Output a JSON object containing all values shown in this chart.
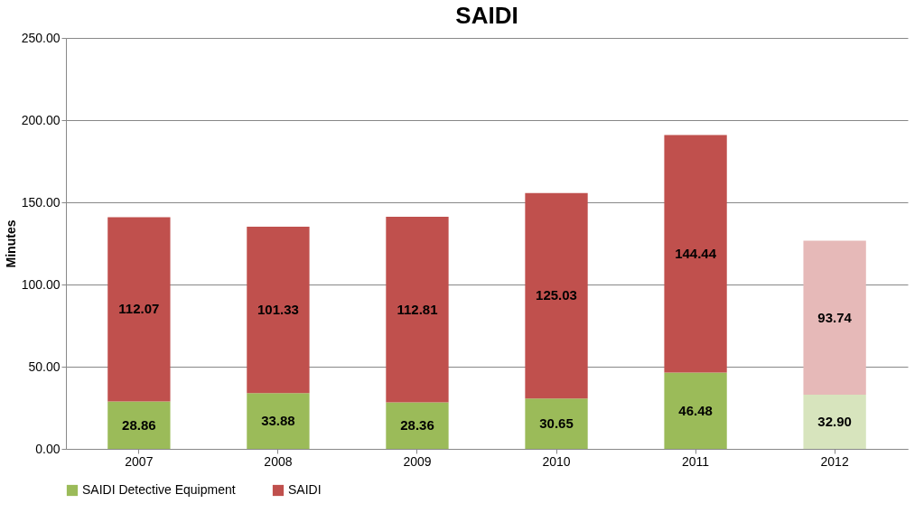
{
  "chart_data": {
    "type": "bar",
    "title": "SAIDI",
    "ylabel": "Minutes",
    "stacked": true,
    "categories": [
      "2007",
      "2008",
      "2009",
      "2010",
      "2011",
      "2012"
    ],
    "series": [
      {
        "name": "SAIDI Detective Equipment",
        "color": "#9bbb59",
        "colors": [
          "#9bbb59",
          "#9bbb59",
          "#9bbb59",
          "#9bbb59",
          "#9bbb59",
          "#d7e4bd"
        ],
        "values": [
          28.86,
          33.88,
          28.36,
          30.65,
          46.48,
          32.9
        ],
        "value_labels": [
          "28.86",
          "33.88",
          "28.36",
          "30.65",
          "46.48",
          "32.90"
        ]
      },
      {
        "name": "SAIDI",
        "color": "#c0504d",
        "colors": [
          "#c0504d",
          "#c0504d",
          "#c0504d",
          "#c0504d",
          "#c0504d",
          "#e6b9b8"
        ],
        "values": [
          112.07,
          101.33,
          112.81,
          125.03,
          144.44,
          93.74
        ],
        "value_labels": [
          "112.07",
          "101.33",
          "112.81",
          "125.03",
          "144.44",
          "93.74"
        ]
      }
    ],
    "ylim": [
      0,
      250
    ],
    "yticks": [
      {
        "value": 0,
        "label": "0.00"
      },
      {
        "value": 50,
        "label": "50.00"
      },
      {
        "value": 100,
        "label": "100.00"
      },
      {
        "value": 150,
        "label": "150.00"
      },
      {
        "value": 200,
        "label": "200.00"
      },
      {
        "value": 250,
        "label": "250.00"
      }
    ],
    "grid": "y",
    "legend": "bottom"
  }
}
